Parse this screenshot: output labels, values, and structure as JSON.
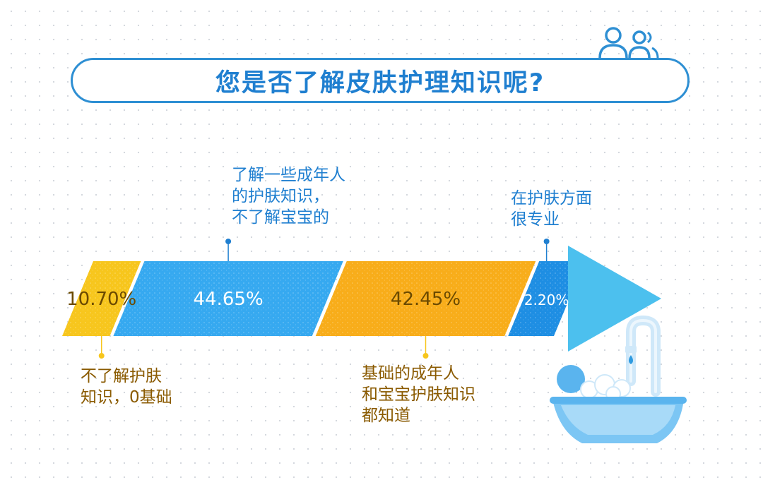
{
  "title": "您是否了解皮肤护理知识呢?",
  "colors": {
    "yellow": "#f7c61d",
    "light_blue": "#36a9f0",
    "orange": "#f8ad1a",
    "dark_blue": "#1e8ee3",
    "arrow": "#4cc0ee",
    "label_blue": "#1f7fd0",
    "label_brown": "#8a5a00"
  },
  "icons": [
    "people-icon",
    "faucet-icon",
    "bathtub-icon"
  ],
  "chart_data": {
    "type": "bar",
    "orientation": "horizontal-stacked",
    "categories": [
      "不了解护肤\n知识，0基础",
      "了解一些成年人\n的护肤知识，\n不了解宝宝的",
      "基础的成年人\n和宝宝护肤知识\n都知道",
      "在护肤方面\n很专业"
    ],
    "values": [
      10.7,
      44.65,
      42.45,
      2.2
    ],
    "value_labels": [
      "10.70%",
      "44.65%",
      "42.45%",
      "2.20%"
    ],
    "label_positions": [
      "below",
      "above",
      "below",
      "above"
    ],
    "unit": "%"
  }
}
